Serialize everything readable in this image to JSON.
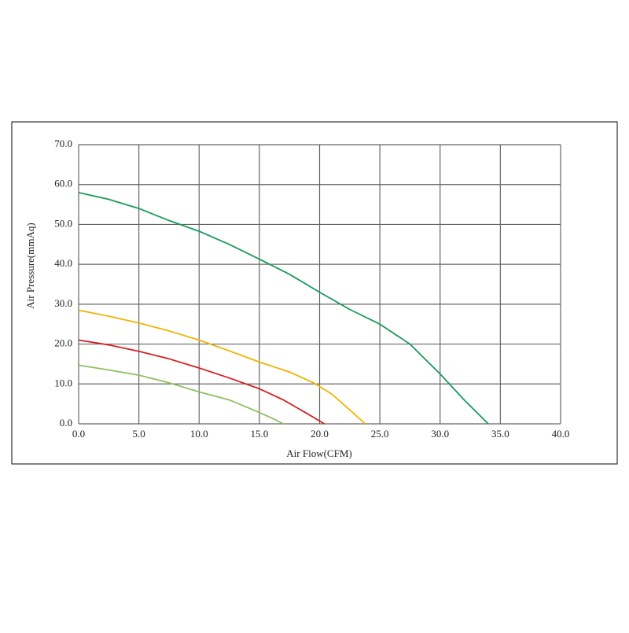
{
  "chart_data": {
    "type": "line",
    "xlabel": "Air Flow(CFM)",
    "ylabel": "Air Pressure(mmAq)",
    "xlim": [
      0,
      40
    ],
    "ylim": [
      0,
      70
    ],
    "grid": true,
    "xticks": [
      {
        "value": 0,
        "label": "0.0"
      },
      {
        "value": 5,
        "label": "5.0"
      },
      {
        "value": 10,
        "label": "10.0"
      },
      {
        "value": 15,
        "label": "15.0"
      },
      {
        "value": 20,
        "label": "20.0"
      },
      {
        "value": 25,
        "label": "25.0"
      },
      {
        "value": 30,
        "label": "30.0"
      },
      {
        "value": 35,
        "label": "35.0"
      },
      {
        "value": 40,
        "label": "40.0"
      }
    ],
    "yticks": [
      {
        "value": 0,
        "label": "0.0"
      },
      {
        "value": 10,
        "label": "10.0"
      },
      {
        "value": 20,
        "label": "20.0"
      },
      {
        "value": 30,
        "label": "30.0"
      },
      {
        "value": 40,
        "label": "40.0"
      },
      {
        "value": 50,
        "label": "50.0"
      },
      {
        "value": 60,
        "label": "60.0"
      },
      {
        "value": 70,
        "label": "70.0"
      }
    ],
    "series": [
      {
        "color": "#1a9a5a",
        "x": [
          0,
          2.5,
          5,
          7.5,
          10,
          12.5,
          15,
          17.5,
          20,
          22.5,
          25,
          27.5,
          30,
          32,
          34
        ],
        "values": [
          58,
          56.3,
          54,
          51,
          48.3,
          45,
          41.3,
          37.5,
          33,
          28.7,
          25,
          20,
          12.5,
          6,
          0
        ]
      },
      {
        "color": "#f0b400",
        "x": [
          0,
          2.5,
          5,
          7.5,
          10,
          12.5,
          15,
          17.5,
          19.5,
          21,
          22.5,
          23.8
        ],
        "values": [
          28.5,
          27,
          25.3,
          23.3,
          21,
          18.3,
          15.5,
          13,
          10.3,
          7.5,
          3.5,
          0
        ]
      },
      {
        "color": "#d42020",
        "x": [
          0,
          2.5,
          5,
          7.5,
          10,
          12.5,
          15,
          17,
          19,
          20.4
        ],
        "values": [
          21,
          19.8,
          18.2,
          16.3,
          14,
          11.5,
          8.8,
          6,
          2.5,
          0
        ]
      },
      {
        "color": "#8cc060",
        "x": [
          0,
          2.5,
          5,
          7.5,
          10,
          12.5,
          14.5,
          16,
          17
        ],
        "values": [
          14.7,
          13.5,
          12.2,
          10.3,
          8,
          6,
          3.5,
          1.5,
          0
        ]
      }
    ]
  }
}
